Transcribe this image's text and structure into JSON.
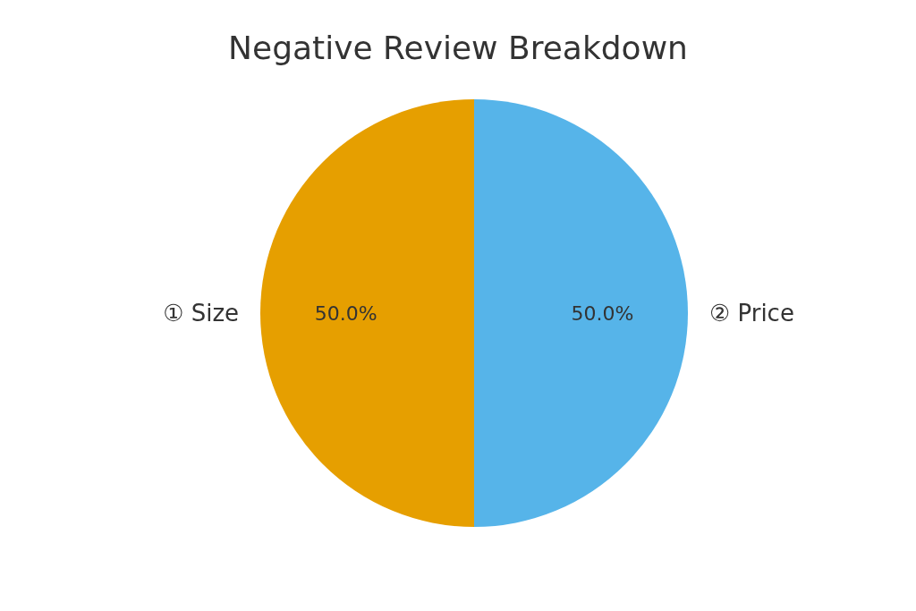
{
  "chart_data": {
    "type": "pie",
    "title": "Negative Review Breakdown",
    "categories": [
      "① Size",
      "② Price"
    ],
    "values": [
      50,
      50
    ],
    "colors": [
      "#e69f00",
      "#56b4e9"
    ],
    "value_labels": [
      "50.0%",
      "50.0%"
    ]
  }
}
